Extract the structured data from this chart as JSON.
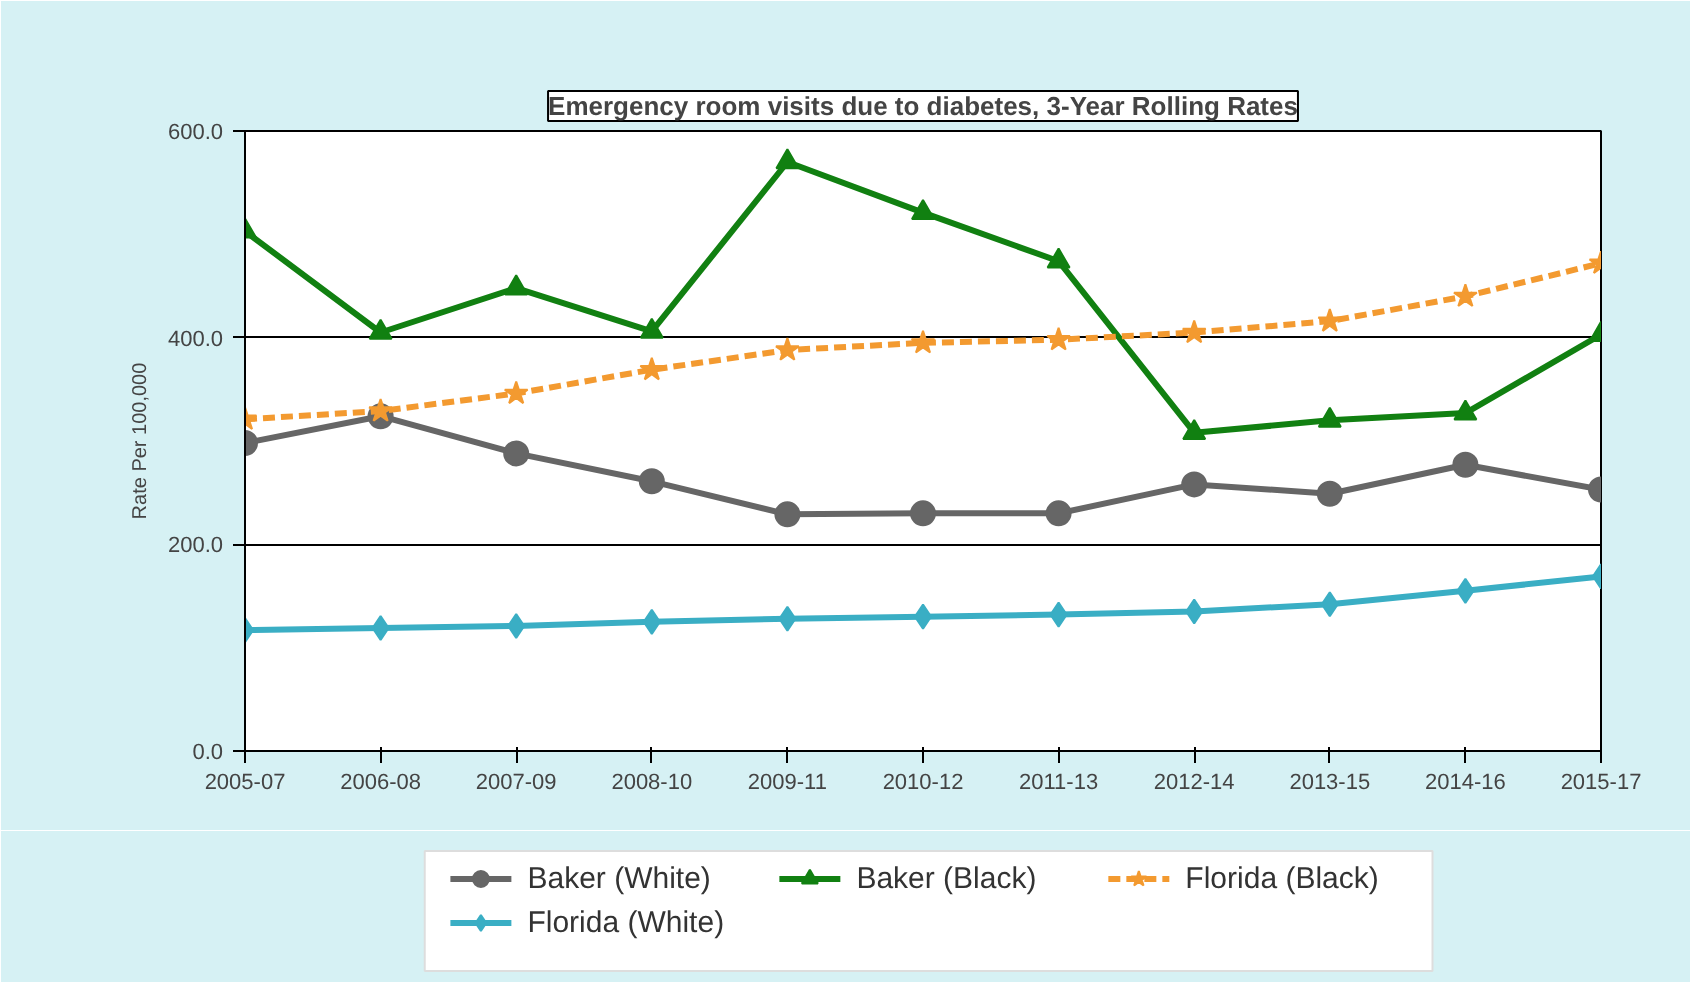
{
  "chart_data": {
    "type": "line",
    "title": "Emergency room visits due to diabetes, 3-Year Rolling Rates",
    "ylabel": "Rate Per 100,000",
    "categories": [
      "2005-07",
      "2006-08",
      "2007-09",
      "2008-10",
      "2009-11",
      "2010-12",
      "2011-13",
      "2012-14",
      "2013-15",
      "2014-16",
      "2015-17"
    ],
    "series": [
      {
        "name": "Baker (White)",
        "color": "#666666",
        "marker": "circle",
        "line_style": "solid",
        "values": [
          298,
          324,
          288,
          261,
          229,
          230,
          230,
          258,
          249,
          277,
          253
        ]
      },
      {
        "name": "Baker (Black)",
        "color": "#118011",
        "marker": "triangle",
        "line_style": "solid",
        "values": [
          503,
          405,
          448,
          406,
          570,
          521,
          474,
          308,
          320,
          327,
          403
        ]
      },
      {
        "name": "Florida (Black)",
        "color": "#f39a30",
        "marker": "star",
        "line_style": "dashed",
        "values": [
          321,
          329,
          346,
          369,
          388,
          395,
          398,
          405,
          416,
          440,
          472
        ]
      },
      {
        "name": "Florida (White)",
        "color": "#3aaec4",
        "marker": "diamond",
        "line_style": "solid",
        "values": [
          117,
          119,
          121,
          125,
          128,
          130,
          132,
          135,
          142,
          155,
          169
        ]
      }
    ],
    "ylim": [
      0,
      600
    ],
    "yticks": [
      {
        "value": 0,
        "label": "0.0"
      },
      {
        "value": 200,
        "label": "200.0"
      },
      {
        "value": 400,
        "label": "400.0"
      },
      {
        "value": 600,
        "label": "600.0"
      }
    ],
    "grid": "y",
    "legend": "bottom"
  }
}
